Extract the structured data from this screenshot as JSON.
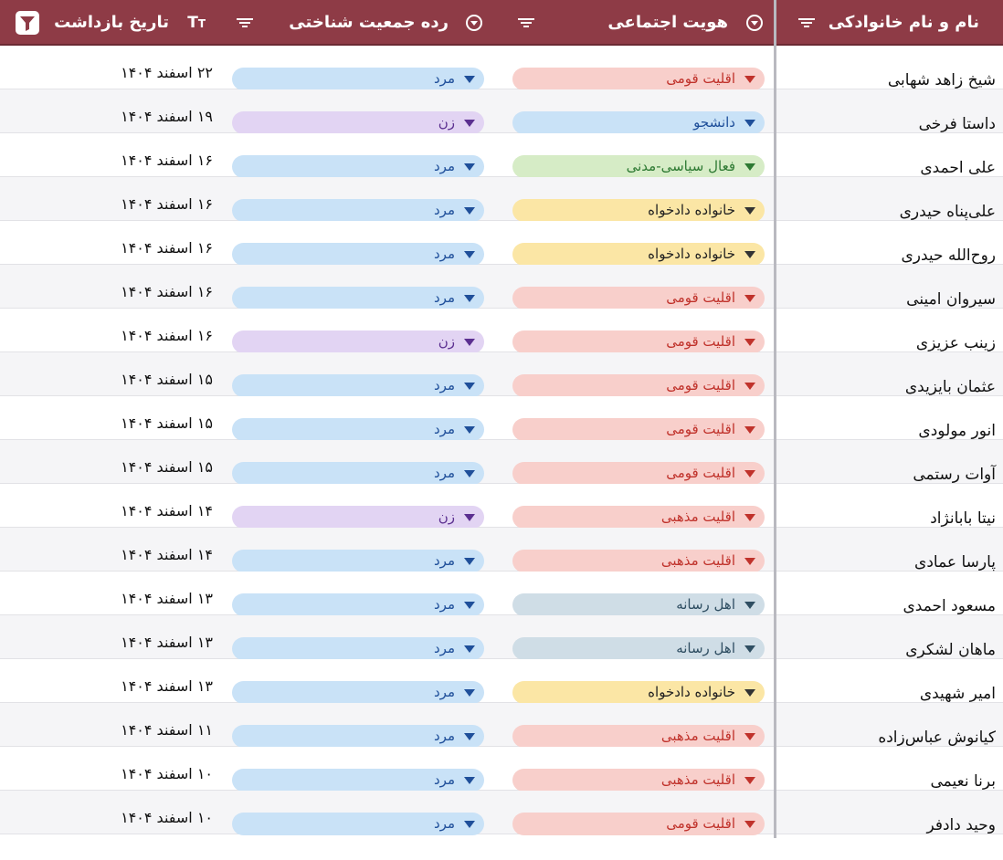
{
  "header": {
    "col_name": "نام و نام خانوادکی",
    "col_identity": "هویت اجتماعی",
    "col_gender": "رده جمعیت شناختی",
    "col_date": "تاریخ بازداشت"
  },
  "colors": {
    "header_bg": "#8e3b46",
    "identity": {
      "اقلیت قومی": {
        "bg": "#f8cfcb",
        "fg": "#c0322b",
        "arrow": "#c0322b"
      },
      "دانشجو": {
        "bg": "#c9e2f7",
        "fg": "#1f4f9a",
        "arrow": "#1f4f9a"
      },
      "فعال سیاسی-مدنی": {
        "bg": "#d6ecc6",
        "fg": "#2e7a33",
        "arrow": "#2e7a33"
      },
      "خانواده دادخواه": {
        "bg": "#fbe6a5",
        "fg": "#222222",
        "arrow": "#333333"
      },
      "اقلیت مذهبی": {
        "bg": "#f8cfcb",
        "fg": "#c0322b",
        "arrow": "#c0322b"
      },
      "اهل رسانه": {
        "bg": "#cfdde6",
        "fg": "#2f4e62",
        "arrow": "#2f4e62"
      }
    },
    "gender": {
      "مرد": {
        "bg": "#c9e2f7",
        "fg": "#1f4f9a",
        "arrow": "#1f4f9a"
      },
      "زن": {
        "bg": "#e2d4f3",
        "fg": "#5b2f90",
        "arrow": "#5b2f90"
      }
    }
  },
  "rows": [
    {
      "name": "شیخ زاهد شهابی",
      "identity": "اقلیت قومی",
      "gender": "مرد",
      "date": "۲۲ اسفند ۱۴۰۴"
    },
    {
      "name": "داستا فرخی",
      "identity": "دانشجو",
      "gender": "زن",
      "date": "۱۹ اسفند ۱۴۰۴"
    },
    {
      "name": "علی احمدی",
      "identity": "فعال سیاسی-مدنی",
      "gender": "مرد",
      "date": "۱۶ اسفند ۱۴۰۴"
    },
    {
      "name": "علی‌پناه حیدری",
      "identity": "خانواده دادخواه",
      "gender": "مرد",
      "date": "۱۶ اسفند ۱۴۰۴"
    },
    {
      "name": "روح‌الله حیدری",
      "identity": "خانواده دادخواه",
      "gender": "مرد",
      "date": "۱۶ اسفند ۱۴۰۴"
    },
    {
      "name": "سیروان امینی",
      "identity": "اقلیت قومی",
      "gender": "مرد",
      "date": "۱۶ اسفند ۱۴۰۴"
    },
    {
      "name": "زینب عزیزی",
      "identity": "اقلیت قومی",
      "gender": "زن",
      "date": "۱۶ اسفند ۱۴۰۴"
    },
    {
      "name": "عثمان بایزیدی",
      "identity": "اقلیت قومی",
      "gender": "مرد",
      "date": "۱۵ اسفند ۱۴۰۴"
    },
    {
      "name": "انور مولودی",
      "identity": "اقلیت قومی",
      "gender": "مرد",
      "date": "۱۵ اسفند ۱۴۰۴"
    },
    {
      "name": "آوات رستمی",
      "identity": "اقلیت قومی",
      "gender": "مرد",
      "date": "۱۵ اسفند ۱۴۰۴"
    },
    {
      "name": "نیتا بابانژاد",
      "identity": "اقلیت مذهبی",
      "gender": "زن",
      "date": "۱۴ اسفند ۱۴۰۴"
    },
    {
      "name": "پارسا عمادی",
      "identity": "اقلیت مذهبی",
      "gender": "مرد",
      "date": "۱۴ اسفند ۱۴۰۴"
    },
    {
      "name": "مسعود احمدی",
      "identity": "اهل رسانه",
      "gender": "مرد",
      "date": "۱۳ اسفند ۱۴۰۴"
    },
    {
      "name": "ماهان لشکری",
      "identity": "اهل رسانه",
      "gender": "مرد",
      "date": "۱۳ اسفند ۱۴۰۴"
    },
    {
      "name": "امیر شهیدی",
      "identity": "خانواده دادخواه",
      "gender": "مرد",
      "date": "۱۳ اسفند ۱۴۰۴"
    },
    {
      "name": "کیانوش عباس‌زاده",
      "identity": "اقلیت مذهبی",
      "gender": "مرد",
      "date": "۱۱ اسفند ۱۴۰۴"
    },
    {
      "name": "برنا نعیمی",
      "identity": "اقلیت مذهبی",
      "gender": "مرد",
      "date": "۱۰ اسفند ۱۴۰۴"
    },
    {
      "name": "وحید دادفر",
      "identity": "اقلیت قومی",
      "gender": "مرد",
      "date": "۱۰ اسفند ۱۴۰۴"
    }
  ]
}
